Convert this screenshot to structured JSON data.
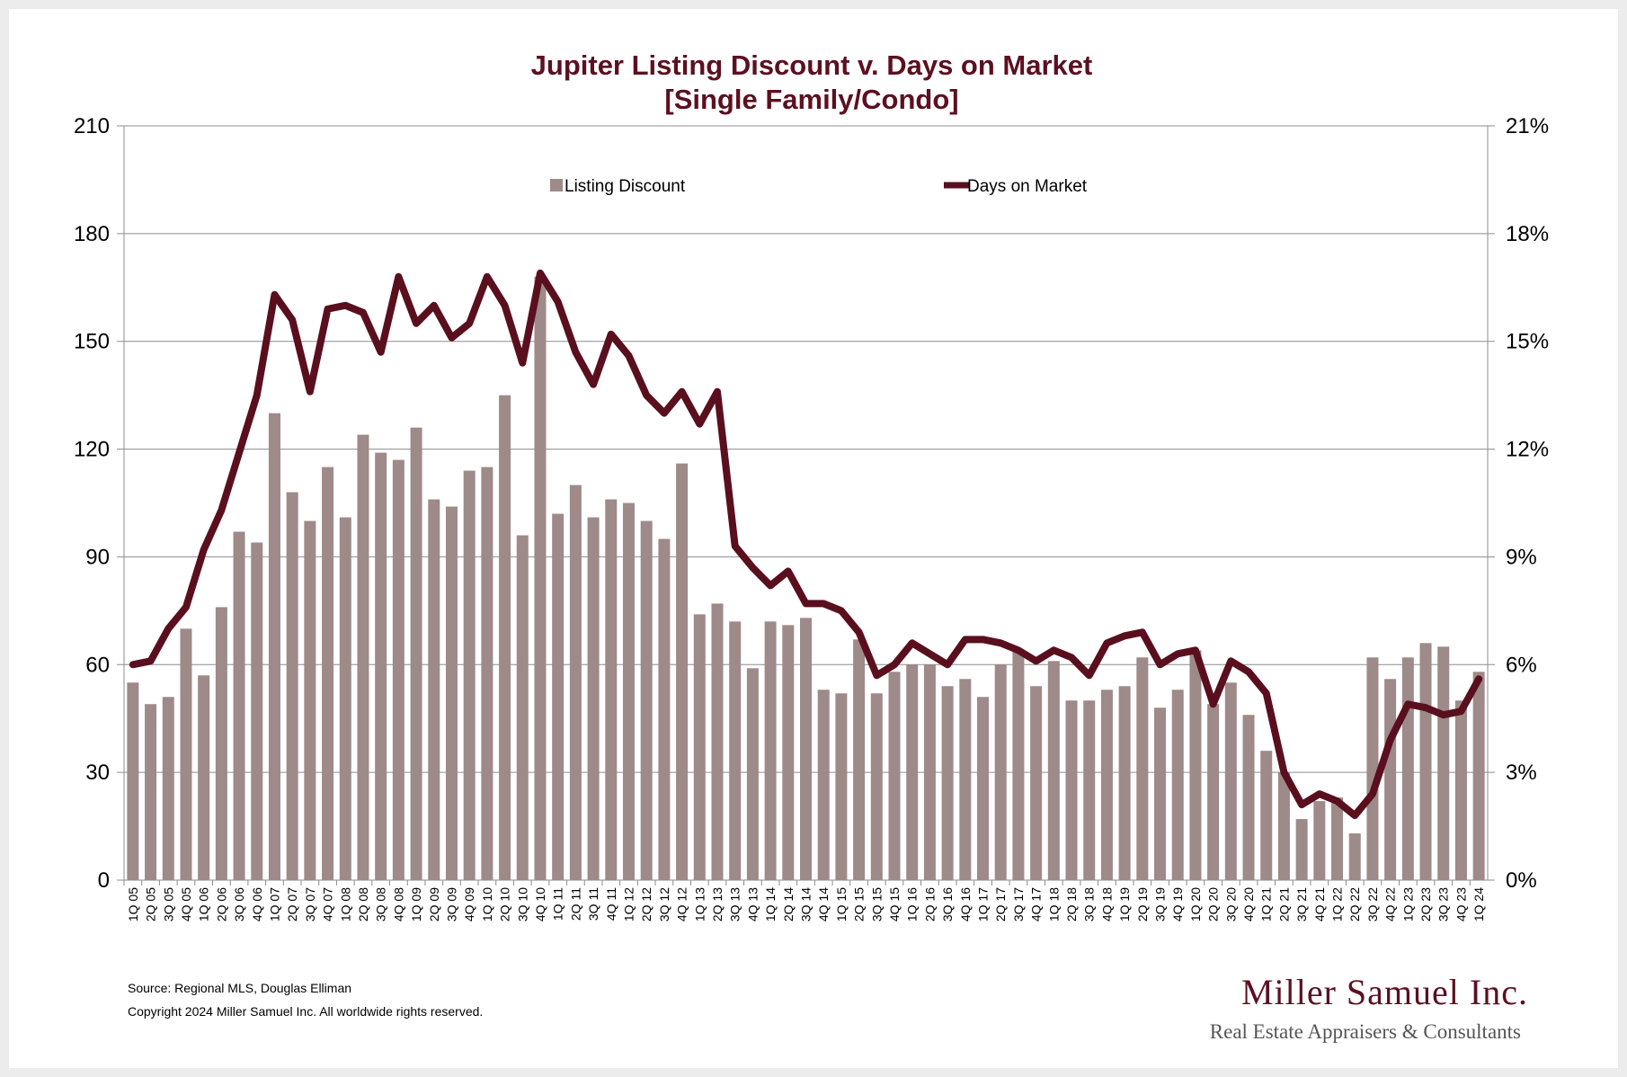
{
  "chart_data": {
    "type": "bar+line",
    "title_line1": "Jupiter Listing Discount v. Days on Market",
    "title_line2": "[Single Family/Condo]",
    "legend": {
      "bar_label": "Listing Discount",
      "line_label": "Days on Market",
      "placement": "top-center"
    },
    "colors": {
      "bar": "#9e8a88",
      "line": "#5a0f1e",
      "title": "#5c1020"
    },
    "left_axis": {
      "min": 0,
      "max": 210,
      "step": 30,
      "ticks": [
        "0",
        "30",
        "60",
        "90",
        "120",
        "150",
        "180",
        "210"
      ]
    },
    "right_axis": {
      "min": 0,
      "max": 21,
      "step": 3,
      "ticks": [
        "0%",
        "3%",
        "6%",
        "9%",
        "12%",
        "15%",
        "18%",
        "21%"
      ]
    },
    "grid": true,
    "categories": [
      "1Q 05",
      "2Q 05",
      "3Q 05",
      "4Q 05",
      "1Q 06",
      "2Q 06",
      "3Q 06",
      "4Q 06",
      "1Q 07",
      "2Q 07",
      "3Q 07",
      "4Q 07",
      "1Q 08",
      "2Q 08",
      "3Q 08",
      "4Q 08",
      "1Q 09",
      "2Q 09",
      "3Q 09",
      "4Q 09",
      "1Q 10",
      "2Q 10",
      "3Q 10",
      "4Q 10",
      "1Q 11",
      "2Q 11",
      "3Q 11",
      "4Q 11",
      "1Q 12",
      "2Q 12",
      "3Q 12",
      "4Q 12",
      "1Q 13",
      "2Q 13",
      "3Q 13",
      "4Q 13",
      "1Q 14",
      "2Q 14",
      "3Q 14",
      "4Q 14",
      "1Q 15",
      "2Q 15",
      "3Q 15",
      "4Q 15",
      "1Q 16",
      "2Q 16",
      "3Q 16",
      "4Q 16",
      "1Q 17",
      "2Q 17",
      "3Q 17",
      "4Q 17",
      "1Q 18",
      "2Q 18",
      "3Q 18",
      "4Q 18",
      "1Q 19",
      "2Q 19",
      "3Q 19",
      "4Q 19",
      "1Q 20",
      "2Q 20",
      "3Q 20",
      "4Q 20",
      "1Q 21",
      "2Q 21",
      "3Q 21",
      "4Q 21",
      "1Q 22",
      "2Q 22",
      "3Q 22",
      "4Q 22",
      "1Q 23",
      "2Q 23",
      "3Q 23",
      "4Q 23",
      "1Q 24"
    ],
    "series": [
      {
        "name": "Listing Discount",
        "axis": "right",
        "unit": "%",
        "values": [
          5.5,
          4.9,
          5.1,
          7.0,
          5.7,
          7.6,
          9.7,
          9.4,
          13.0,
          10.8,
          10.0,
          11.5,
          10.1,
          12.4,
          11.9,
          11.7,
          12.6,
          10.6,
          10.4,
          11.4,
          11.5,
          13.5,
          9.6,
          16.8,
          10.2,
          11.0,
          10.1,
          10.6,
          10.5,
          10.0,
          9.5,
          11.6,
          7.4,
          7.7,
          7.2,
          5.9,
          7.2,
          7.1,
          7.3,
          5.3,
          5.2,
          6.7,
          5.2,
          5.8,
          6.0,
          6.0,
          5.4,
          5.6,
          5.1,
          6.0,
          6.4,
          5.4,
          6.1,
          5.0,
          5.0,
          5.3,
          5.4,
          6.2,
          4.8,
          5.3,
          6.4,
          4.9,
          5.5,
          4.6,
          3.6,
          3.0,
          1.7,
          2.2,
          2.3,
          1.3,
          6.2,
          5.6,
          6.2,
          6.6,
          6.5,
          5.0,
          5.8
        ]
      },
      {
        "name": "Days on Market",
        "axis": "left",
        "unit": "days",
        "values": [
          60,
          61,
          70,
          76,
          92,
          103,
          119,
          135,
          163,
          156,
          136,
          159,
          160,
          158,
          147,
          168,
          155,
          160,
          151,
          155,
          168,
          160,
          144,
          169,
          161,
          147,
          138,
          152,
          146,
          135,
          130,
          136,
          127,
          136,
          93,
          87,
          82,
          86,
          77,
          77,
          75,
          69,
          57,
          60,
          66,
          63,
          60,
          67,
          67,
          66,
          64,
          61,
          64,
          62,
          57,
          66,
          68,
          69,
          60,
          63,
          64,
          49,
          61,
          58,
          52,
          30,
          21,
          24,
          22,
          18,
          24,
          39,
          49,
          48,
          46,
          47,
          56
        ]
      }
    ]
  },
  "footer": {
    "source": "Source: Regional MLS, Douglas Elliman",
    "copyright": "Copyright 2024 Miller Samuel Inc. All worldwide rights reserved."
  },
  "brand": {
    "name": "Miller Samuel Inc.",
    "tagline": "Real Estate Appraisers & Consultants"
  }
}
